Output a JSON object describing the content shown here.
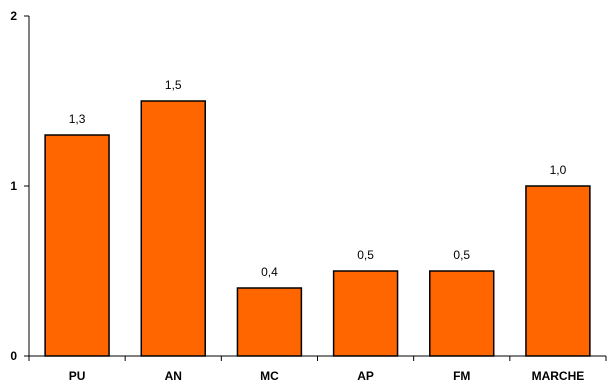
{
  "chart_data": {
    "type": "bar",
    "categories": [
      "PU",
      "AN",
      "MC",
      "AP",
      "FM",
      "MARCHE"
    ],
    "values": [
      1.3,
      1.5,
      0.4,
      0.5,
      0.5,
      1.0
    ],
    "data_labels": [
      "1,3",
      "1,5",
      "0,4",
      "0,5",
      "0,5",
      "1,0"
    ],
    "y_ticks": [
      0,
      1,
      2
    ],
    "y_tick_labels": [
      "0",
      "1",
      "2"
    ],
    "ylim": [
      0,
      2
    ],
    "title": "",
    "xlabel": "",
    "ylabel": "",
    "grid": false,
    "legend": false,
    "bar_color": "#ff6600"
  }
}
